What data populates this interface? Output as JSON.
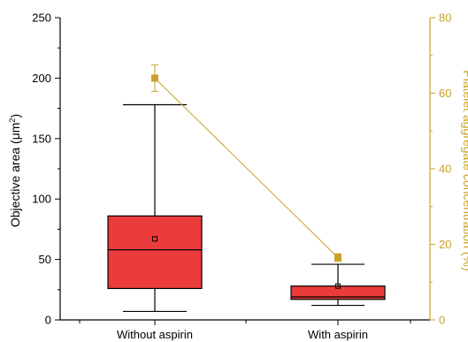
{
  "chart_data": {
    "type": "box",
    "title": "",
    "categories": [
      "Without aspirin",
      "With aspirin"
    ],
    "left_axis": {
      "label": "Objective area (μm²)",
      "label_text": "Objective area (μm",
      "label_sup": "2",
      "label_end": ")",
      "ylim": [
        0,
        250
      ],
      "ticks": [
        0,
        50,
        100,
        150,
        200,
        250
      ],
      "color": "#000000"
    },
    "right_axis": {
      "label": "Platelet aggregate concentration (%)",
      "ylim": [
        0,
        80
      ],
      "ticks": [
        0,
        20,
        40,
        60,
        80
      ],
      "color": "#c9a227"
    },
    "series": [
      {
        "kind": "box",
        "axis": "left",
        "color": "#ec3b3b",
        "boxes": [
          {
            "category": "Without aspirin",
            "whisker_low": 7,
            "q1": 26,
            "median": 58,
            "q3": 86,
            "whisker_high": 178,
            "mean": 67
          },
          {
            "category": "With aspirin",
            "whisker_low": 12,
            "q1": 17,
            "median": 19,
            "q3": 28,
            "whisker_high": 46,
            "mean": 28
          }
        ]
      },
      {
        "kind": "line",
        "axis": "right",
        "color": "#c9a227",
        "points": [
          {
            "category": "Without aspirin",
            "value": 64,
            "error": 3.5
          },
          {
            "category": "With aspirin",
            "value": 16.5,
            "error": 1
          }
        ]
      }
    ],
    "grid": false,
    "legend": "none"
  }
}
